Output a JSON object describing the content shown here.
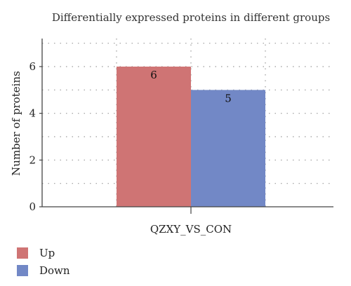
{
  "chart_data": {
    "type": "bar",
    "title": "Differentially expressed proteins in different groups",
    "xlabel": "",
    "ylabel": "Number of proteins",
    "categories": [
      "QZXY_VS_CON"
    ],
    "series": [
      {
        "name": "Up",
        "values": [
          6
        ],
        "color": "#cf7474"
      },
      {
        "name": "Down",
        "values": [
          5
        ],
        "color": "#7288c6"
      }
    ],
    "ylim": [
      0,
      7.2
    ],
    "yticks": [
      0,
      2,
      4,
      6
    ],
    "grid": true,
    "legend_position": "bottom-left"
  }
}
